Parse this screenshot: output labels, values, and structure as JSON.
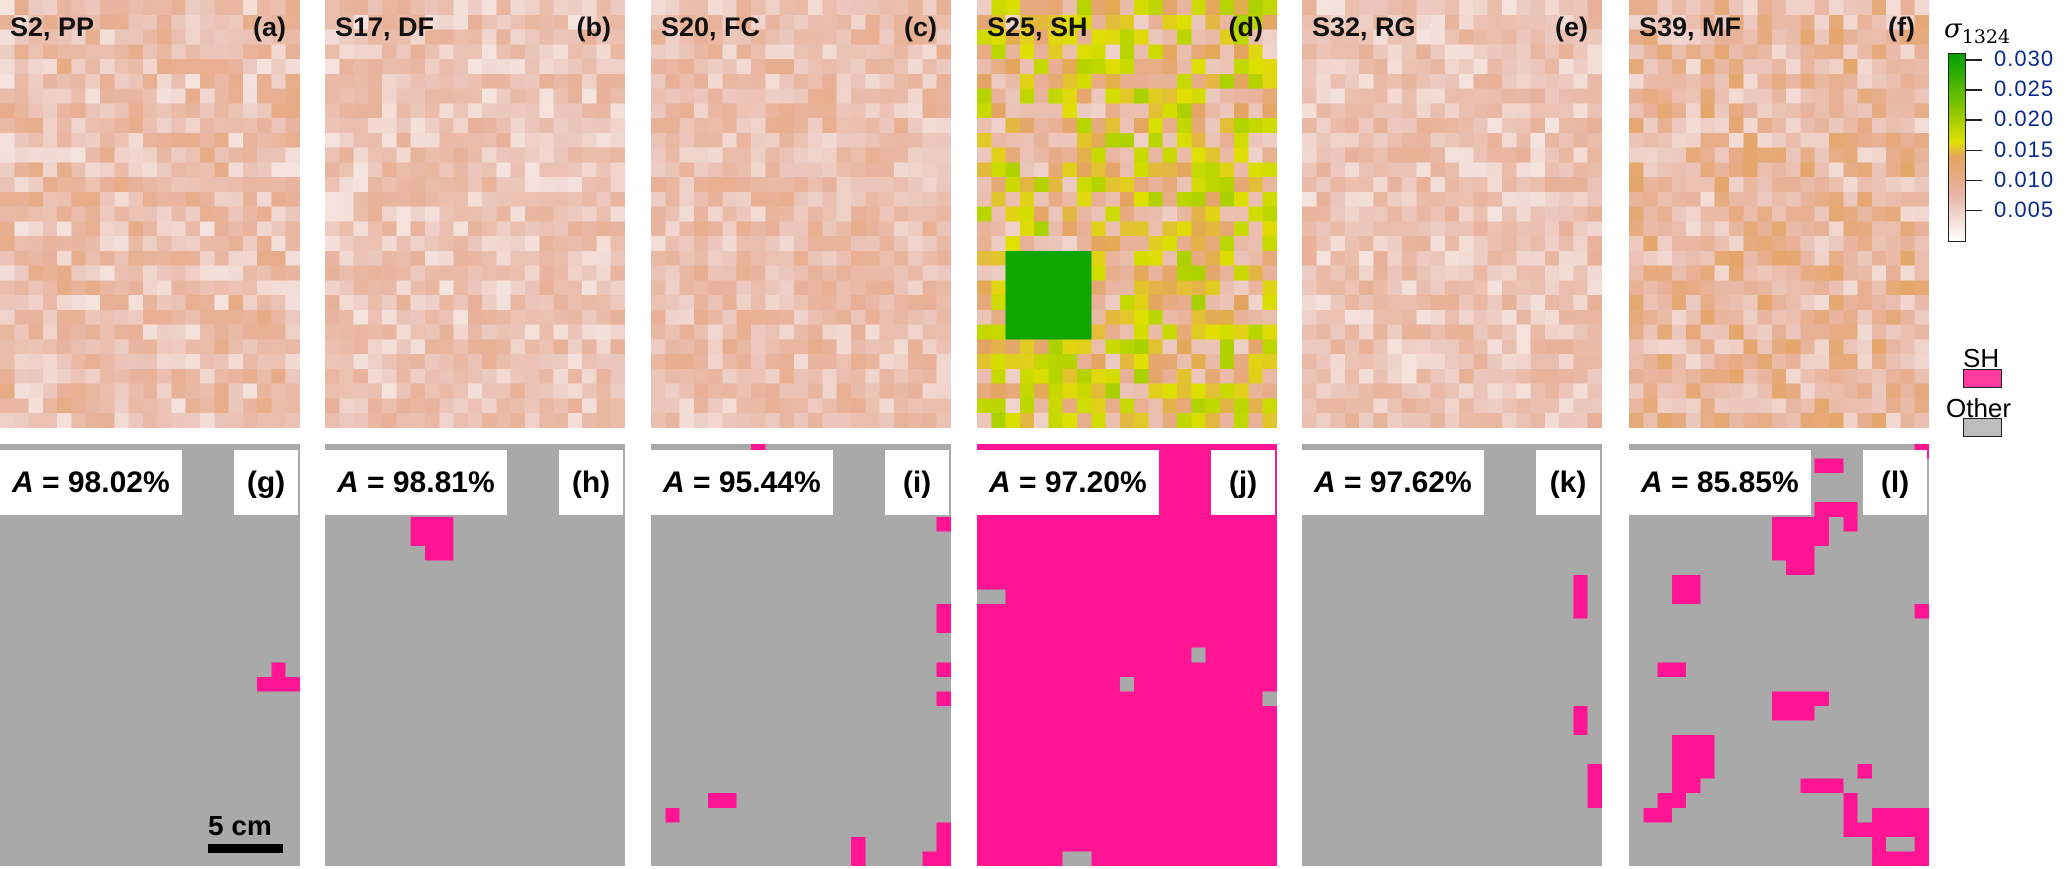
{
  "colorbar": {
    "label": "σ",
    "label_sub": "1324",
    "ticks": [
      "0.030",
      "0.025",
      "0.020",
      "0.015",
      "0.010",
      "0.005"
    ],
    "tick_values": [
      0.03,
      0.025,
      0.02,
      0.015,
      0.01,
      0.005
    ],
    "range": [
      0,
      0.031
    ],
    "colors": [
      "#ffffff",
      "#e8b4a4",
      "#e4a460",
      "#e0e000",
      "#70c000",
      "#00a000"
    ]
  },
  "top_panels": [
    {
      "title": "S2, PP",
      "tag": "(a)"
    },
    {
      "title": "S17, DF",
      "tag": "(b)"
    },
    {
      "title": "S20, FC",
      "tag": "(c)"
    },
    {
      "title": "S25, SH",
      "tag": "(d)"
    },
    {
      "title": "S32, RG",
      "tag": "(e)"
    },
    {
      "title": "S39, MF",
      "tag": "(f)"
    }
  ],
  "bottom_panels": [
    {
      "accuracy_label": "A",
      "accuracy": "= 98.02%",
      "tag": "(g)",
      "background": "Other",
      "patches": [
        [
          19,
          15,
          1,
          1
        ],
        [
          18,
          16,
          3,
          1
        ]
      ]
    },
    {
      "accuracy_label": "A",
      "accuracy": "= 98.81%",
      "tag": "(h)",
      "background": "Other",
      "patches": [
        [
          6,
          5,
          3,
          2
        ],
        [
          7,
          7,
          2,
          1
        ]
      ]
    },
    {
      "accuracy_label": "A",
      "accuracy": "= 95.44%",
      "tag": "(i)",
      "background": "Other",
      "patches": [
        [
          7,
          0,
          1,
          1
        ],
        [
          20,
          5,
          1,
          1
        ],
        [
          20,
          11,
          1,
          2
        ],
        [
          20,
          15,
          1,
          1
        ],
        [
          20,
          17,
          1,
          1
        ],
        [
          1,
          25,
          1,
          1
        ],
        [
          4,
          24,
          2,
          1
        ],
        [
          14,
          27,
          1,
          2
        ],
        [
          20,
          26,
          1,
          3
        ],
        [
          19,
          28,
          1,
          1
        ]
      ]
    },
    {
      "accuracy_label": "A",
      "accuracy": "= 97.20%",
      "tag": "(j)",
      "background": "SH",
      "patches": [
        [
          0,
          0,
          21,
          1
        ],
        [
          0,
          1,
          4,
          2
        ],
        [
          15,
          1,
          6,
          2
        ]
      ],
      "other_patches": [
        [
          4,
          3,
          1,
          1
        ],
        [
          0,
          10,
          2,
          1
        ],
        [
          15,
          14,
          1,
          1
        ],
        [
          10,
          16,
          1,
          1
        ],
        [
          20,
          17,
          1,
          1
        ],
        [
          6,
          28,
          2,
          1
        ]
      ]
    },
    {
      "accuracy_label": "A",
      "accuracy": "= 97.62%",
      "tag": "(k)",
      "background": "Other",
      "patches": [
        [
          19,
          9,
          1,
          3
        ],
        [
          19,
          18,
          1,
          2
        ],
        [
          20,
          22,
          1,
          3
        ]
      ]
    },
    {
      "accuracy_label": "A",
      "accuracy": "= 85.85%",
      "tag": "(l)",
      "background": "Other",
      "patches": [
        [
          13,
          1,
          2,
          1
        ],
        [
          20,
          0,
          1,
          1
        ],
        [
          10,
          5,
          3,
          3
        ],
        [
          11,
          8,
          2,
          1
        ],
        [
          13,
          4,
          3,
          1
        ],
        [
          15,
          5,
          1,
          1
        ],
        [
          13,
          5,
          1,
          2
        ],
        [
          3,
          9,
          2,
          2
        ],
        [
          20,
          11,
          1,
          1
        ],
        [
          2,
          15,
          2,
          1
        ],
        [
          10,
          17,
          3,
          2
        ],
        [
          13,
          17,
          1,
          1
        ],
        [
          3,
          20,
          3,
          3
        ],
        [
          2,
          24,
          2,
          1
        ],
        [
          3,
          23,
          2,
          1
        ],
        [
          1,
          25,
          2,
          1
        ],
        [
          12,
          23,
          3,
          1
        ],
        [
          15,
          24,
          1,
          2
        ],
        [
          16,
          22,
          1,
          1
        ],
        [
          15,
          26,
          2,
          1
        ],
        [
          17,
          25,
          4,
          2
        ],
        [
          17,
          27,
          1,
          2
        ],
        [
          20,
          27,
          1,
          2
        ],
        [
          18,
          28,
          2,
          1
        ]
      ]
    }
  ],
  "scale_bar": {
    "label": "5 cm"
  },
  "legend": [
    {
      "label": "SH",
      "color": "#ff1493"
    },
    {
      "label": "Other",
      "color": "#a9a9a9"
    }
  ]
}
